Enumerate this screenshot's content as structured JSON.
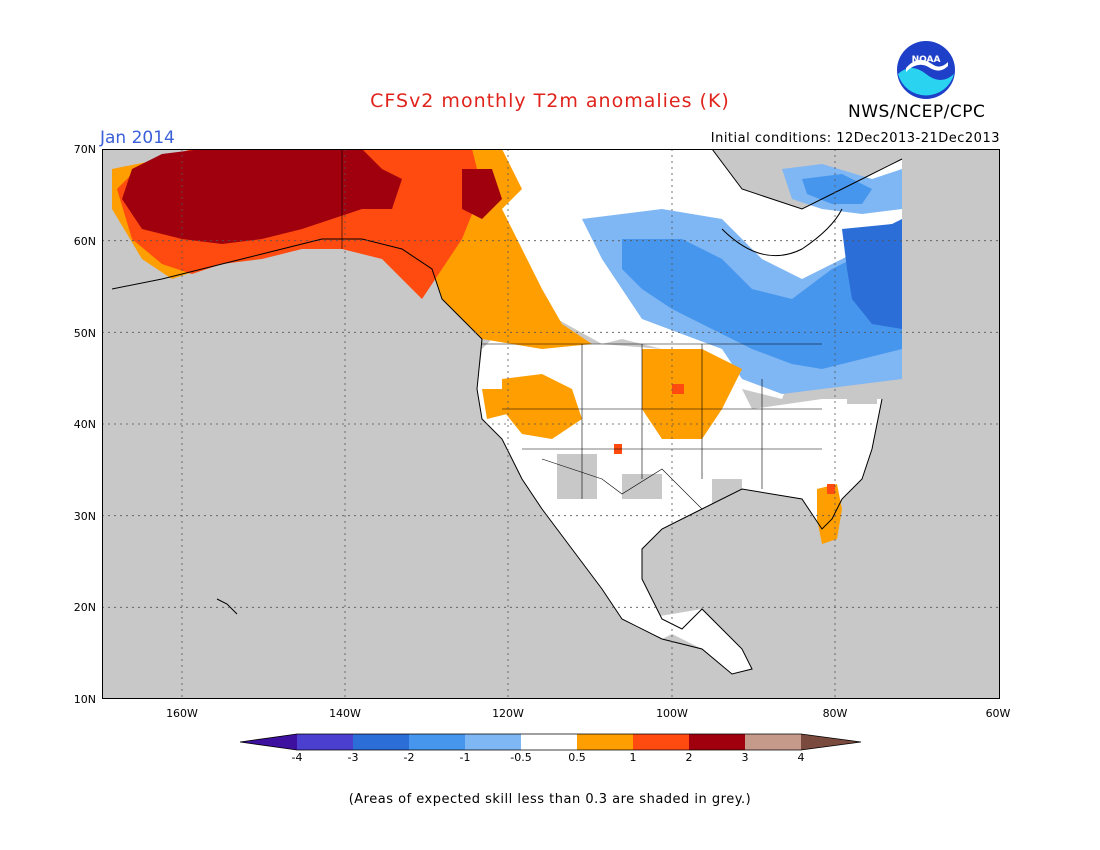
{
  "header": {
    "title": "CFSv2 monthly T2m anomalies (K)",
    "month": "Jan 2014",
    "initial_conditions": "Initial conditions: 12Dec2013-21Dec2013",
    "agency": "NWS/NCEP/CPC",
    "logo_text": "NOAA"
  },
  "axes": {
    "lat_labels": [
      "70N",
      "60N",
      "50N",
      "40N",
      "30N",
      "20N",
      "10N"
    ],
    "lon_labels": [
      "160W",
      "140W",
      "120W",
      "100W",
      "80W",
      "60W"
    ]
  },
  "colorbar": {
    "tick_labels": [
      "-4",
      "-3",
      "-2",
      "-1",
      "-0.5",
      "0.5",
      "1",
      "2",
      "3",
      "4"
    ],
    "colors": [
      "#3d10a0",
      "#4a3fcf",
      "#2c6ed8",
      "#4696ee",
      "#7fb6f4",
      "#ffffff",
      "#ff9e00",
      "#ff4a10",
      "#a0000d",
      "#c59a8a",
      "#7a4a3e"
    ]
  },
  "map_colors": {
    "grey_low_skill": "#c8c8c8",
    "no_anomaly": "#ffffff",
    "warm_05_1": "#ff9e00",
    "warm_1_2": "#ff4a10",
    "warm_2_3": "#a0000d",
    "cool_05_1": "#7fb6f4",
    "cool_1_2": "#4696ee",
    "cool_2_3": "#2c6ed8"
  },
  "footnote": "(Areas of expected skill less than 0.3 are shaded in grey.)"
}
